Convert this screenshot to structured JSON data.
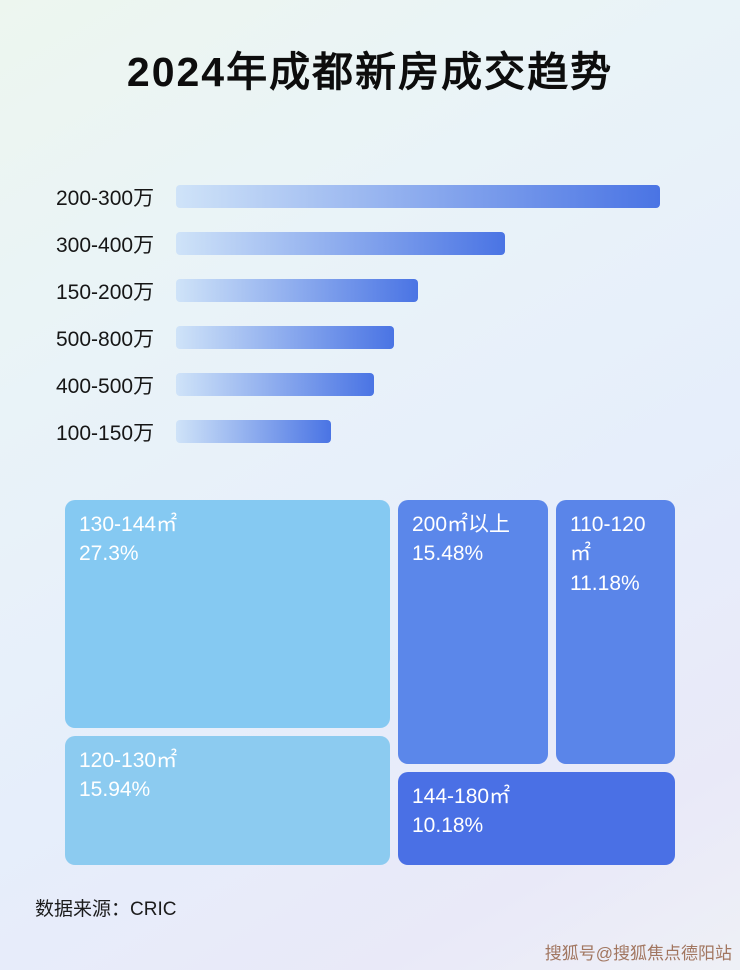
{
  "title": "2024年成都新房成交趋势",
  "source": "数据来源：CRIC",
  "watermark": "搜狐号@搜狐焦点德阳站",
  "colors": {
    "bar_gradient_start": "#cfe3f8",
    "bar_gradient_end": "#4a74e4",
    "title_color": "#0d0d0d"
  },
  "chart_data": [
    {
      "type": "bar",
      "orientation": "horizontal",
      "title": "",
      "categories": [
        "200-300万",
        "300-400万",
        "150-200万",
        "500-800万",
        "400-500万",
        "100-150万"
      ],
      "values": [
        100,
        68,
        50,
        45,
        41,
        32
      ],
      "value_scale": "relative length, % of longest bar (no numeric labels shown in image)",
      "gradient": [
        "#cfe3f8",
        "#4a74e4"
      ],
      "grid": false,
      "legend": false
    },
    {
      "type": "treemap",
      "title": "",
      "items": [
        {
          "label": "130-144㎡",
          "value": 27.3,
          "display": "27.3%",
          "color": "#85c9f2"
        },
        {
          "label": "120-130㎡",
          "value": 15.94,
          "display": "15.94%",
          "color": "#8ccbf0"
        },
        {
          "label": "200㎡以上",
          "value": 15.48,
          "display": "15.48%",
          "color": "#5b87ea"
        },
        {
          "label": "110-120㎡",
          "value": 11.18,
          "display": "11.18%",
          "color": "#5a85e9"
        },
        {
          "label": "144-180㎡",
          "value": 10.18,
          "display": "10.18%",
          "color": "#4a70e5"
        }
      ],
      "legend": false
    }
  ]
}
